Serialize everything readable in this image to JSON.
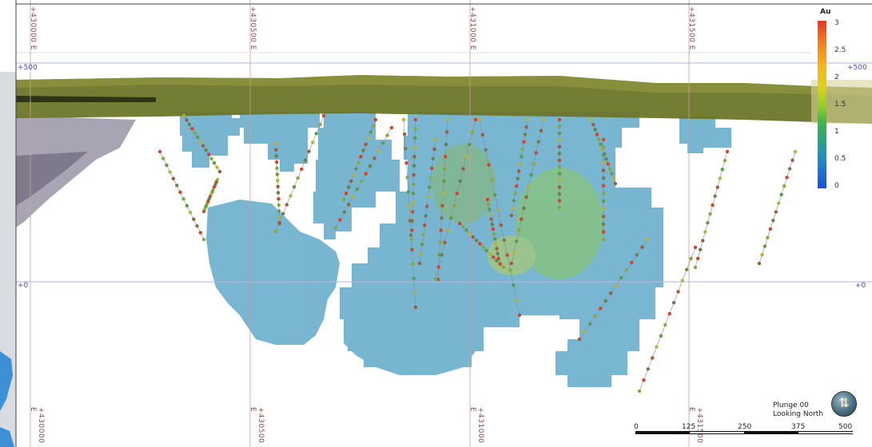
{
  "view": {
    "easting_labels": [
      "+430000 E",
      "+430500 E",
      "+431000 E",
      "+431500 E"
    ],
    "rl_labels": {
      "top_left": "+500",
      "top_right": "+500",
      "mid_left": "+0",
      "mid_right": "+0"
    }
  },
  "legend": {
    "title": "Au",
    "ticks": [
      "3",
      "2.5",
      "2",
      "1.5",
      "1",
      "0.5",
      "0"
    ],
    "colors": {
      "high": "#e8351f",
      "mid_high": "#f5b81f",
      "mid": "#8ccd2f",
      "low": "#1d8ec5",
      "min": "#1f4fd8"
    }
  },
  "orientation": {
    "plunge": "Plunge 00",
    "looking": "Looking North",
    "compass_icon": "compass-icon"
  },
  "scale_bar": {
    "ticks": [
      "0",
      "125",
      "250",
      "375",
      "500"
    ]
  },
  "colors": {
    "block_model": "#6db0cf",
    "topography": "#707a2c",
    "grid_line_easting": "#d49a9a",
    "grid_line_rl": "#b6b6dc"
  }
}
